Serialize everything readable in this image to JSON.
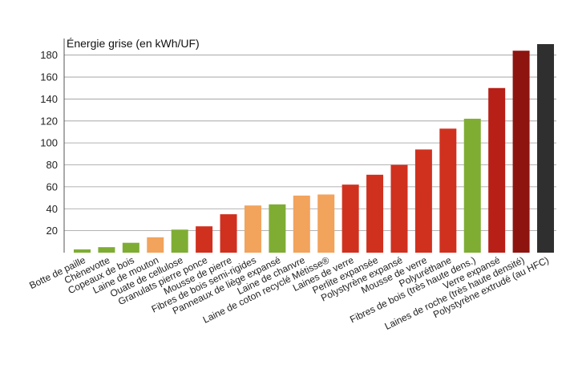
{
  "chart_data": {
    "type": "bar",
    "ylabel": "Énergie grise (en kWh/UF)",
    "ylim": [
      0,
      190
    ],
    "yticks": [
      20,
      40,
      60,
      80,
      100,
      120,
      140,
      160,
      180
    ],
    "grid": true,
    "categories": [
      "Botte de paille",
      "Chènevotte",
      "Copeaux de bois",
      "Laine de mouton",
      "Ouate de cellulose",
      "Granulats pierre ponce",
      "Mousse de pierre",
      "Fibres de bois semi-rigides",
      "Panneaux de liège expansé",
      "Laine de chanvre",
      "Laine de coton recyclé Métisse®",
      "Laines de verre",
      "Perlite expansée",
      "Polystyrène expansé",
      "Mousse de verre",
      "Polyuréthane",
      "Fibres de bois (très haute dens.)",
      "Verre expansé",
      "Laines de roche (très haute densité)",
      "Polystyrène extrudé (au HFC)"
    ],
    "values": [
      3,
      5,
      9,
      14,
      21,
      24,
      35,
      43,
      44,
      52,
      53,
      62,
      71,
      80,
      94,
      113,
      122,
      150,
      184,
      190
    ],
    "colors": [
      "#7fad34",
      "#7fad34",
      "#7fad34",
      "#f2a35c",
      "#7fad34",
      "#d0311f",
      "#d0311f",
      "#f2a35c",
      "#7fad34",
      "#f2a35c",
      "#f2a35c",
      "#d0311f",
      "#d0311f",
      "#d0311f",
      "#d0311f",
      "#d0311f",
      "#7fad34",
      "#b81f16",
      "#8e1410",
      "#2f2f2f"
    ]
  }
}
